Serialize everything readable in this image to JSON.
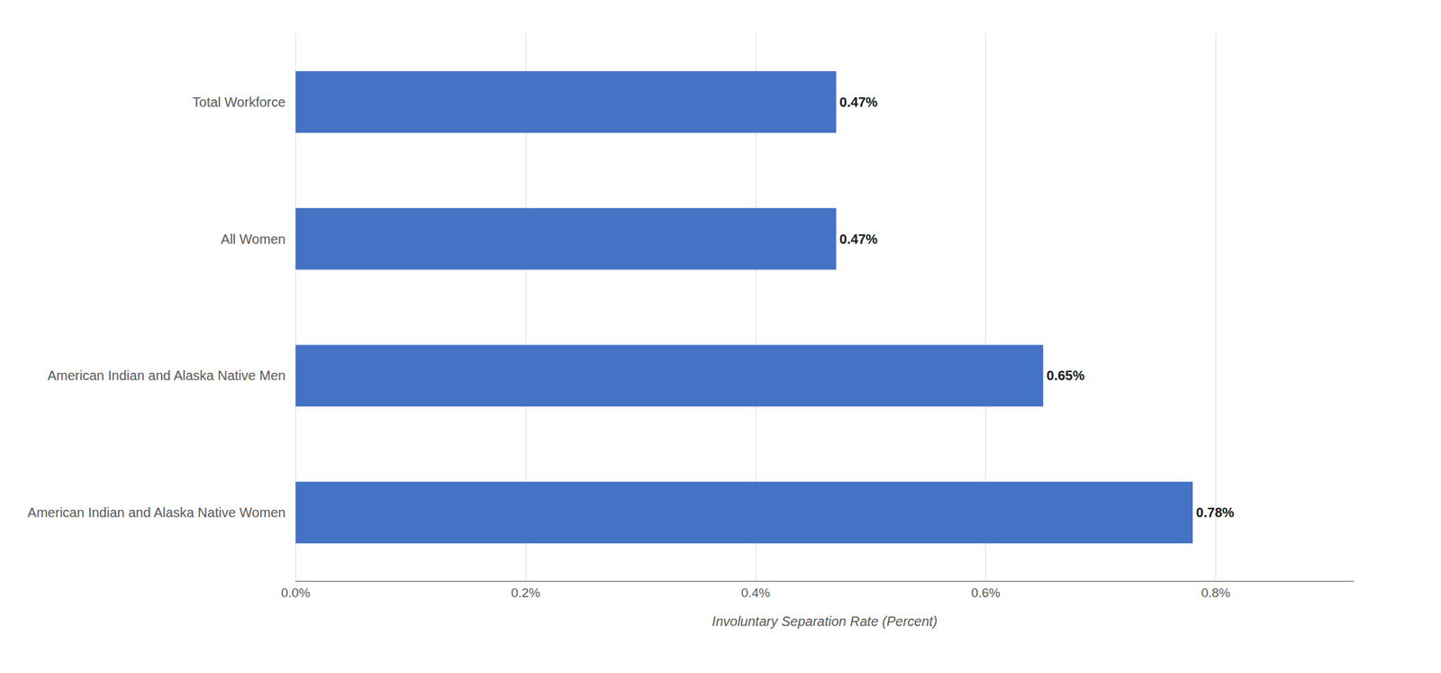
{
  "chart_data": {
    "type": "bar",
    "orientation": "horizontal",
    "categories": [
      "American Indian and Alaska Native Women",
      "American Indian and Alaska Native Men",
      "All Women",
      "Total Workforce"
    ],
    "values": [
      0.0078,
      0.0065,
      0.0047,
      0.0047
    ],
    "value_labels": [
      "0.78%",
      "0.65%",
      "0.47%",
      "0.47%"
    ],
    "data_labels": true,
    "color": "#4472C4",
    "xlabel": "Involuntary Separation Rate (Percent)",
    "xlim": [
      0,
      0.0092
    ],
    "xticks": [
      {
        "value": 0.0,
        "label": "0.0%"
      },
      {
        "value": 0.002,
        "label": "0.2%"
      },
      {
        "value": 0.004,
        "label": "0.4%"
      },
      {
        "value": 0.006,
        "label": "0.6%"
      },
      {
        "value": 0.008,
        "label": "0.8%"
      }
    ],
    "grid": true
  }
}
